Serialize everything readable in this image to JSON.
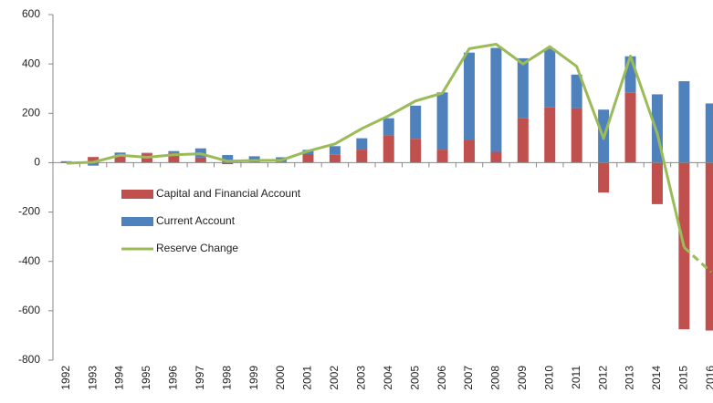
{
  "chart_data": {
    "type": "bar",
    "categories": [
      "1992",
      "1993",
      "1994",
      "1995",
      "1996",
      "1997",
      "1998",
      "1999",
      "2000",
      "2001",
      "2002",
      "2003",
      "2004",
      "2005",
      "2006",
      "2007",
      "2008",
      "2009",
      "2010",
      "2011",
      "2012",
      "2013",
      "2014",
      "2015",
      "2016"
    ],
    "series": [
      {
        "name": "Capital and Financial Account",
        "color": "#c0504d",
        "stack": true,
        "values": [
          -2,
          23,
          33,
          38,
          40,
          21,
          -6,
          5,
          2,
          35,
          32,
          53,
          111,
          97,
          53,
          92,
          44,
          180,
          224,
          221,
          -121,
          283,
          -168,
          -675,
          -680
        ]
      },
      {
        "name": "Current Account",
        "color": "#4f81bd",
        "stack": true,
        "values": [
          6,
          -12,
          8,
          2,
          7,
          37,
          31,
          21,
          20,
          17,
          35,
          46,
          69,
          134,
          232,
          354,
          421,
          243,
          238,
          136,
          215,
          148,
          277,
          330,
          240
        ]
      },
      {
        "name": "Reserve Change",
        "color": "#9bbb59",
        "type": "line",
        "dashed_from": "2015",
        "values": [
          -2,
          2,
          30,
          22,
          32,
          36,
          6,
          9,
          10,
          47,
          76,
          138,
          190,
          250,
          282,
          462,
          480,
          400,
          470,
          390,
          98,
          432,
          118,
          -343,
          -443
        ]
      }
    ],
    "ylim": [
      -800,
      600
    ],
    "yticks": [
      -800,
      -600,
      -400,
      -200,
      0,
      200,
      400,
      600
    ],
    "grid": false
  }
}
